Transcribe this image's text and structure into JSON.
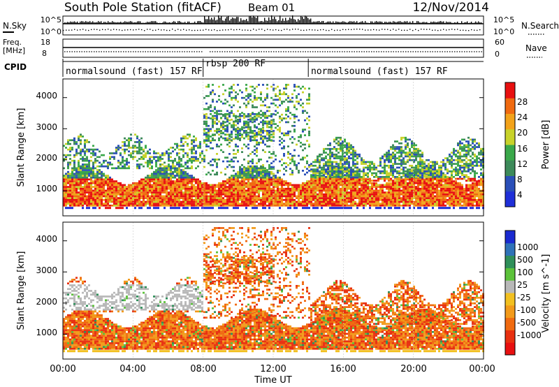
{
  "header": {
    "station": "South Pole Station (fitACF)",
    "beam": "Beam 01",
    "date": "12/Nov/2014"
  },
  "strip_labels": {
    "nsky": "N.Sky",
    "nsky_tick_top": "10^5",
    "nsky_tick_bot": "10^0",
    "nsearch": "N.Search",
    "nsearch_tick_top": "10^5",
    "nsearch_tick_bot": "10^0",
    "freq": "Freq.",
    "freq_unit": "[MHz]",
    "freq_tick_top": "18",
    "freq_tick_bot": "8",
    "nave": "Nave",
    "nave_tick_top": "60",
    "nave_tick_bot": "0",
    "cpid": "CPID"
  },
  "cpid_segments": [
    {
      "label": "normalsound (fast) 157 RF",
      "start_hour": 0
    },
    {
      "label": "rbsp 200 RF",
      "start_hour": 8
    },
    {
      "label": "normalsound (fast) 157 RF",
      "start_hour": 14
    }
  ],
  "colors": {
    "power": [
      "#1f2fd8",
      "#2a4fb8",
      "#3d8a5a",
      "#3aa84a",
      "#c8d22a",
      "#f2a21a",
      "#f06a10",
      "#e81010"
    ],
    "velocity": [
      "#1a2ad0",
      "#2f72b8",
      "#2f8f5a",
      "#5cc23a",
      "#b8b8b8",
      "#f2c020",
      "#f29a1a",
      "#f06a10",
      "#e83010",
      "#e81010"
    ]
  },
  "chart_data": [
    {
      "type": "heatmap",
      "panel": "power",
      "ylabel": "Slant Range [km]",
      "xlabel": "",
      "ylim": [
        200,
        4600
      ],
      "y_ticks": [
        "1000",
        "2000",
        "3000",
        "4000"
      ],
      "xlim_hours": [
        0,
        24
      ],
      "colorbar": {
        "label": "Power [dB]",
        "ticks": [
          "4",
          "8",
          "12",
          "16",
          "20",
          "24",
          "28"
        ],
        "range": [
          0,
          30
        ]
      }
    },
    {
      "type": "heatmap",
      "panel": "velocity",
      "ylabel": "Slant Range [km]",
      "xlabel": "Time UT",
      "ylim": [
        200,
        4600
      ],
      "y_ticks": [
        "1000",
        "2000",
        "3000",
        "4000"
      ],
      "x_ticks": [
        "00:00",
        "04:00",
        "08:00",
        "12:00",
        "16:00",
        "20:00",
        "00:00"
      ],
      "xlim_hours": [
        0,
        24
      ],
      "colorbar": {
        "label": "Velocity [m s^-1]",
        "ticks": [
          "1000",
          "500",
          "100",
          "25",
          "-25",
          "-100",
          "-500",
          "-1000"
        ]
      }
    }
  ]
}
